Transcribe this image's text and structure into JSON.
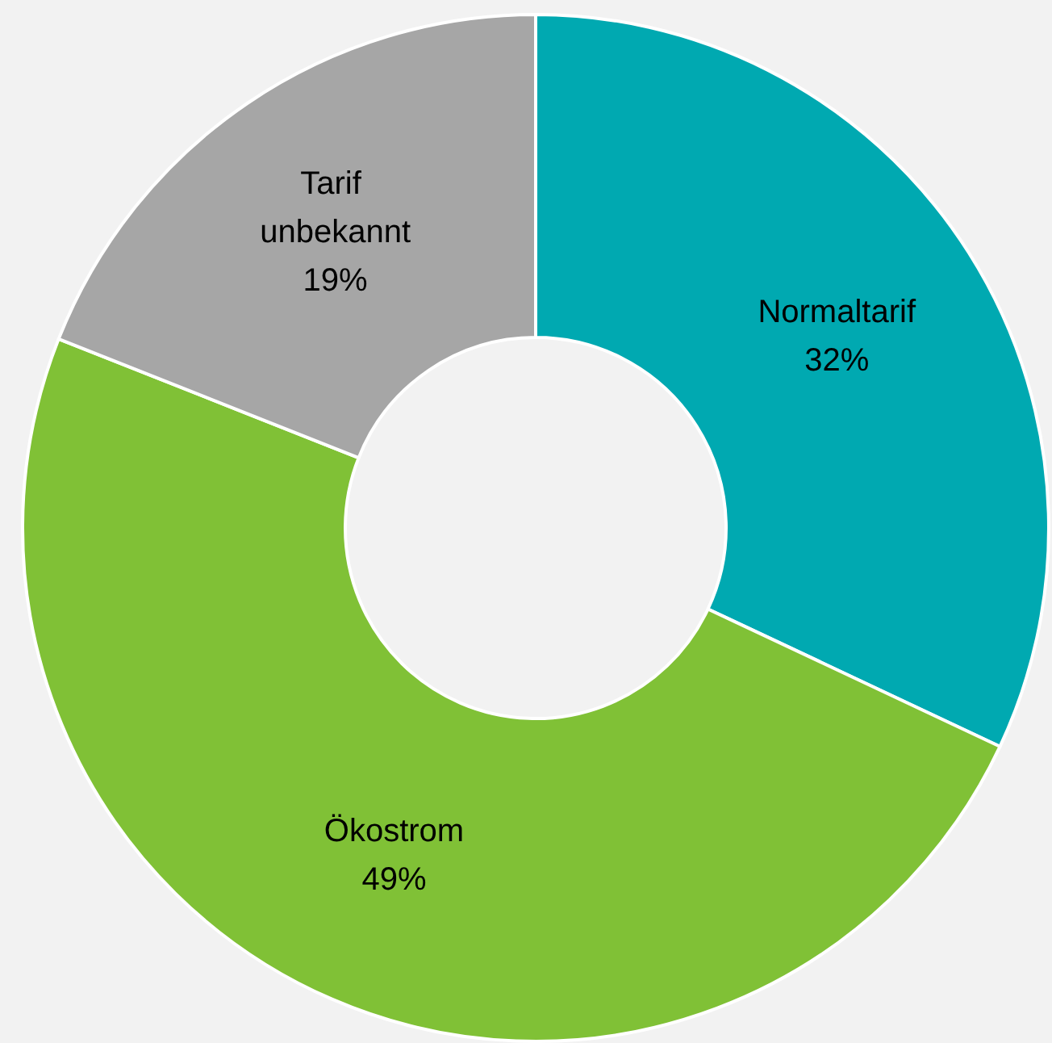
{
  "chart_data": {
    "type": "donut",
    "categories": [
      "Normaltarif",
      "Ökostrom",
      "Tarif unbekannt"
    ],
    "values": [
      32,
      49,
      19
    ],
    "colors": [
      "#00a9b1",
      "#80c136",
      "#a6a6a6"
    ],
    "value_labels": [
      "32%",
      "49%",
      "19%"
    ],
    "legend": false
  }
}
